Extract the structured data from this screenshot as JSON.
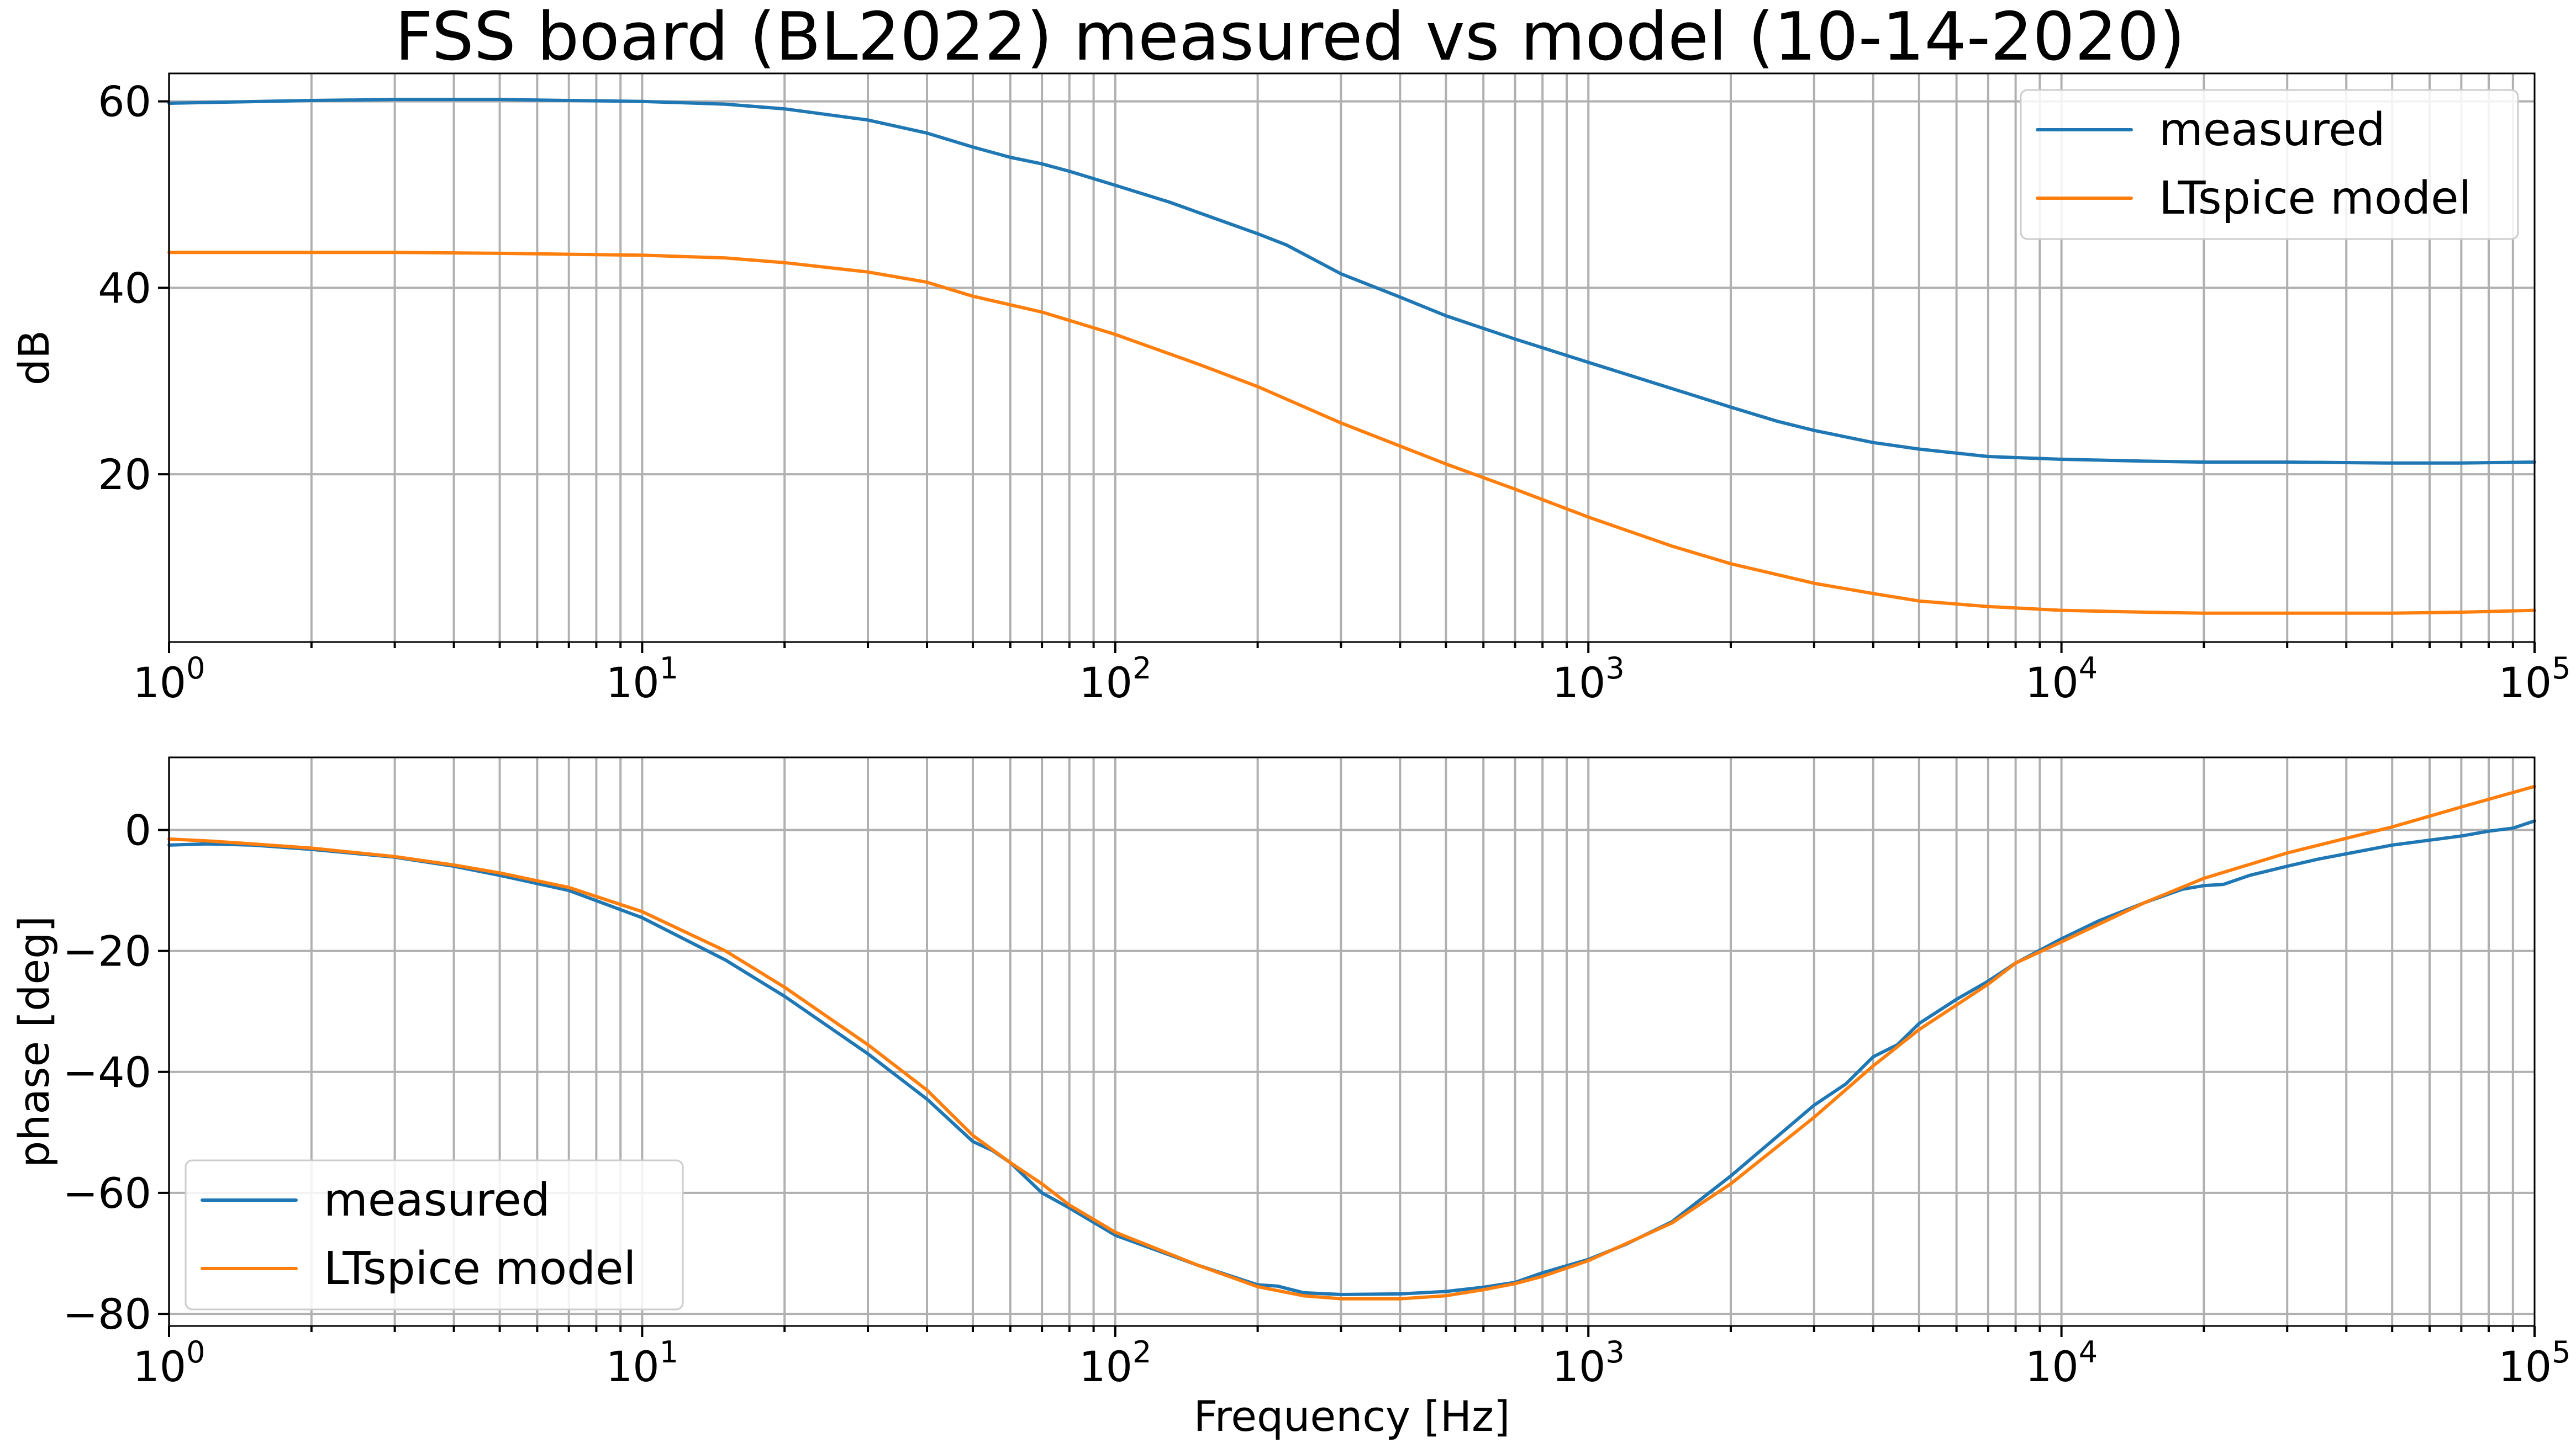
{
  "chart_data": {
    "title": "FSS board (BL2022) measured vs model (10-14-2020)",
    "colors": {
      "measured": "#1f77b4",
      "model": "#ff7f0e"
    },
    "grid": true,
    "x_scale": "log",
    "xlim": [
      1,
      100000
    ],
    "subplots": [
      {
        "type": "line",
        "id": "magnitude",
        "xlabel": "",
        "ylabel": "dB",
        "ylim": [
          2,
          63
        ],
        "yticks": [
          20,
          40,
          60
        ],
        "yticklabels": [
          "20",
          "40",
          "60"
        ],
        "legend_loc": "upper-right",
        "series": [
          {
            "name": "measured",
            "color": "#1f77b4",
            "x": [
              1,
              2,
              3,
              5,
              7,
              10,
              15,
              20,
              30,
              40,
              50,
              60,
              70,
              80,
              100,
              130,
              200,
              230,
              300,
              400,
              500,
              700,
              1000,
              1500,
              2000,
              2500,
              3000,
              4000,
              5000,
              7000,
              10000,
              15000,
              20000,
              30000,
              50000,
              70000,
              100000
            ],
            "y": [
              59.8,
              60.1,
              60.2,
              60.2,
              60.1,
              60.0,
              59.7,
              59.2,
              58.0,
              56.6,
              55.1,
              54.0,
              53.3,
              52.5,
              51.0,
              49.2,
              45.8,
              44.6,
              41.5,
              39.0,
              37.0,
              34.5,
              32.0,
              29.2,
              27.2,
              25.7,
              24.7,
              23.4,
              22.7,
              21.9,
              21.6,
              21.4,
              21.3,
              21.3,
              21.2,
              21.2,
              21.3
            ]
          },
          {
            "name": "LTspice model",
            "color": "#ff7f0e",
            "x": [
              1,
              2,
              3,
              5,
              7,
              10,
              15,
              20,
              30,
              40,
              50,
              70,
              100,
              150,
              200,
              300,
              500,
              700,
              1000,
              1500,
              2000,
              3000,
              4000,
              5000,
              7000,
              10000,
              15000,
              20000,
              30000,
              50000,
              70000,
              100000
            ],
            "y": [
              43.8,
              43.8,
              43.8,
              43.7,
              43.6,
              43.5,
              43.2,
              42.7,
              41.7,
              40.6,
              39.1,
              37.4,
              35.0,
              31.8,
              29.4,
              25.5,
              21.1,
              18.4,
              15.4,
              12.3,
              10.4,
              8.3,
              7.2,
              6.4,
              5.8,
              5.4,
              5.2,
              5.1,
              5.1,
              5.1,
              5.2,
              5.4
            ]
          }
        ]
      },
      {
        "type": "line",
        "id": "phase",
        "xlabel": "Frequency [Hz]",
        "ylabel": "phase [deg]",
        "ylim": [
          -82,
          12
        ],
        "yticks": [
          -80,
          -60,
          -40,
          -20,
          0
        ],
        "yticklabels": [
          "−80",
          "−60",
          "−40",
          "−20",
          "0"
        ],
        "legend_loc": "lower-left",
        "series": [
          {
            "name": "measured",
            "color": "#1f77b4",
            "x": [
              1,
              1.2,
              1.5,
              2,
              3,
              4,
              5,
              7,
              10,
              15,
              20,
              30,
              40,
              50,
              55,
              60,
              70,
              80,
              100,
              150,
              200,
              220,
              250,
              300,
              400,
              500,
              600,
              700,
              800,
              1000,
              1200,
              1500,
              2000,
              3000,
              3500,
              4000,
              4500,
              5000,
              6000,
              7000,
              8000,
              10000,
              12000,
              15000,
              18000,
              20000,
              22000,
              25000,
              30000,
              35000,
              50000,
              70000,
              80000,
              90000,
              100000
            ],
            "y": [
              -2.5,
              -2.3,
              -2.5,
              -3.2,
              -4.5,
              -6.0,
              -7.5,
              -10.0,
              -14.5,
              -21.5,
              -27.5,
              -37.0,
              -44.5,
              -51.5,
              -53.0,
              -55.0,
              -60.0,
              -62.5,
              -67.0,
              -72.0,
              -75.2,
              -75.4,
              -76.5,
              -76.8,
              -76.7,
              -76.3,
              -75.6,
              -74.8,
              -73.2,
              -71.0,
              -68.5,
              -64.8,
              -57.2,
              -45.5,
              -42.0,
              -37.5,
              -35.5,
              -32.0,
              -28.0,
              -25.0,
              -22.0,
              -18.0,
              -15.0,
              -12.0,
              -9.8,
              -9.2,
              -9.0,
              -7.5,
              -6.0,
              -4.8,
              -2.5,
              -1.0,
              -0.2,
              0.3,
              1.5
            ]
          },
          {
            "name": "LTspice model",
            "color": "#ff7f0e",
            "x": [
              1,
              1.2,
              1.5,
              2,
              3,
              4,
              5,
              7,
              10,
              15,
              20,
              30,
              40,
              50,
              60,
              70,
              80,
              100,
              150,
              200,
              250,
              300,
              400,
              500,
              600,
              700,
              800,
              1000,
              1500,
              2000,
              3000,
              4000,
              5000,
              7000,
              8000,
              10000,
              15000,
              20000,
              30000,
              50000,
              70000,
              100000
            ],
            "y": [
              -1.5,
              -1.8,
              -2.3,
              -3.0,
              -4.4,
              -5.8,
              -7.1,
              -9.5,
              -13.5,
              -20.0,
              -26.0,
              -35.5,
              -43.0,
              -50.5,
              -55.0,
              -58.5,
              -62.0,
              -66.5,
              -72.0,
              -75.5,
              -77.0,
              -77.5,
              -77.5,
              -77.0,
              -76.0,
              -75.0,
              -73.8,
              -71.2,
              -65.0,
              -58.5,
              -47.5,
              -39.0,
              -33.0,
              -25.5,
              -22.0,
              -18.5,
              -12.0,
              -8.0,
              -3.8,
              0.5,
              3.8,
              7.2
            ]
          }
        ]
      }
    ]
  }
}
